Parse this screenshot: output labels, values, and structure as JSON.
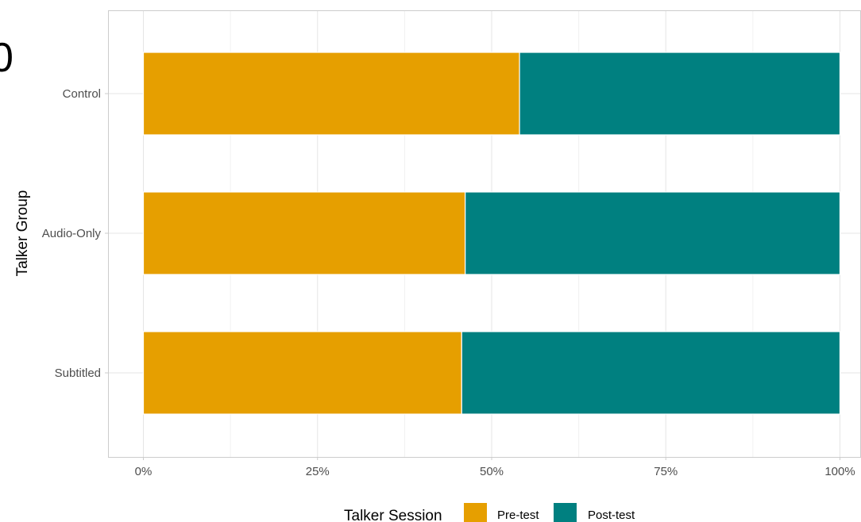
{
  "chart_data": {
    "type": "bar",
    "orientation": "horizontal",
    "stacked": true,
    "categories": [
      "Control",
      "Audio-Only",
      "Subtitled"
    ],
    "series": [
      {
        "name": "Pre-test",
        "values": [
          54,
          46.2,
          45.7
        ],
        "color": "#E69F00"
      },
      {
        "name": "Post-test",
        "values": [
          46,
          53.8,
          54.3
        ],
        "color": "#008080"
      }
    ],
    "xlabel": "",
    "ylabel": "Talker Group",
    "xlim": [
      0,
      100
    ],
    "xticks": [
      0,
      25,
      50,
      75,
      100
    ],
    "xtick_labels": [
      "0%",
      "25%",
      "50%",
      "75%",
      "100%"
    ],
    "grid": true,
    "legend": {
      "title": "Talker Session",
      "position": "bottom"
    },
    "partial_glyph": "0"
  }
}
